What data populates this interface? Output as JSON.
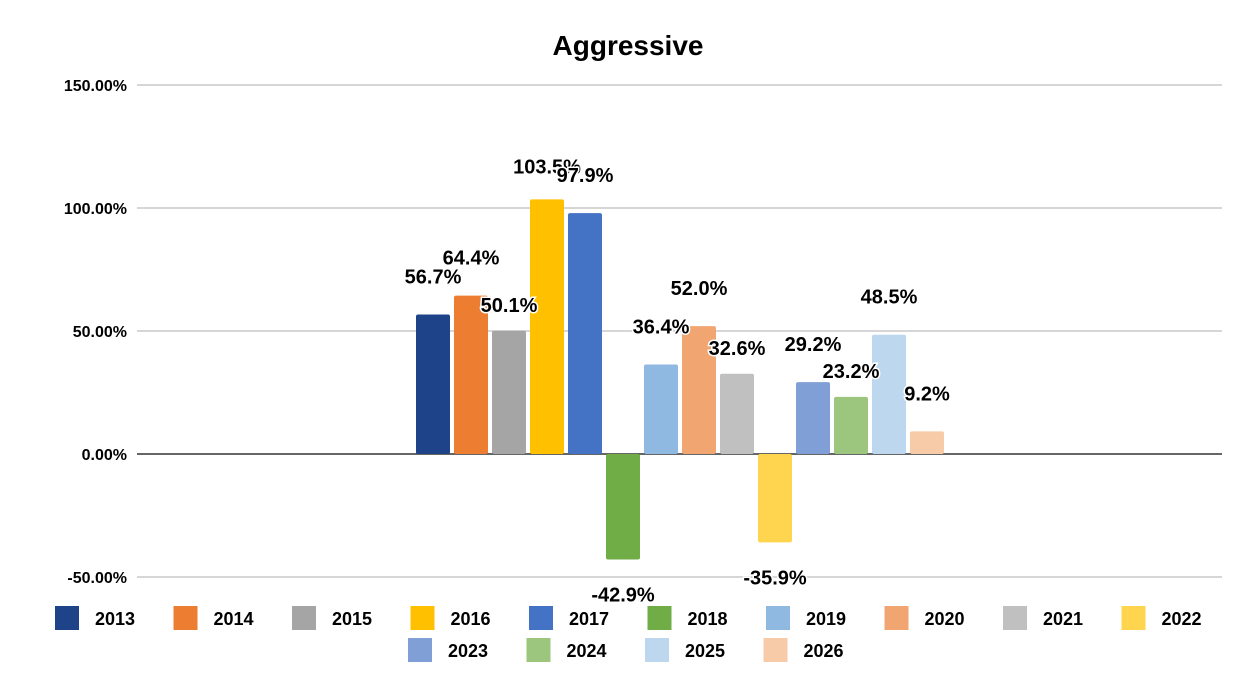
{
  "chart_data": {
    "type": "bar",
    "title": "Aggressive",
    "ylim": [
      -50,
      150
    ],
    "yticks": [
      -50,
      0,
      50,
      100,
      150
    ],
    "ytick_labels": [
      "-50.00%",
      "0.00%",
      "50.00%",
      "100.00%",
      "150.00%"
    ],
    "grid": true,
    "legend_position": "bottom",
    "series": [
      {
        "name": "2013",
        "value": 56.7,
        "label": "56.7%",
        "color": "#1f4388"
      },
      {
        "name": "2014",
        "value": 64.4,
        "label": "64.4%",
        "color": "#ed7d31"
      },
      {
        "name": "2015",
        "value": 50.1,
        "label": "50.1%",
        "color": "#a5a5a5"
      },
      {
        "name": "2016",
        "value": 103.5,
        "label": "103.5%",
        "color": "#ffc000"
      },
      {
        "name": "2017",
        "value": 97.9,
        "label": "97.9%",
        "color": "#4472c4"
      },
      {
        "name": "2018",
        "value": -42.9,
        "label": "-42.9%",
        "color": "#70ad47"
      },
      {
        "name": "2019",
        "value": 36.4,
        "label": "36.4%",
        "color": "#8fb9e0"
      },
      {
        "name": "2020",
        "value": 52.0,
        "label": "52.0%",
        "color": "#f1a570"
      },
      {
        "name": "2021",
        "value": 32.6,
        "label": "32.6%",
        "color": "#c0c0c0"
      },
      {
        "name": "2022",
        "value": -35.9,
        "label": "-35.9%",
        "color": "#ffd54f"
      },
      {
        "name": "2023",
        "value": 29.2,
        "label": "29.2%",
        "color": "#7f9fd6"
      },
      {
        "name": "2024",
        "value": 23.2,
        "label": "23.2%",
        "color": "#9cc67e"
      },
      {
        "name": "2025",
        "value": 48.5,
        "label": "48.5%",
        "color": "#bdd7ee"
      },
      {
        "name": "2026",
        "value": 9.2,
        "label": "9.2%",
        "color": "#f8cba8"
      }
    ]
  }
}
